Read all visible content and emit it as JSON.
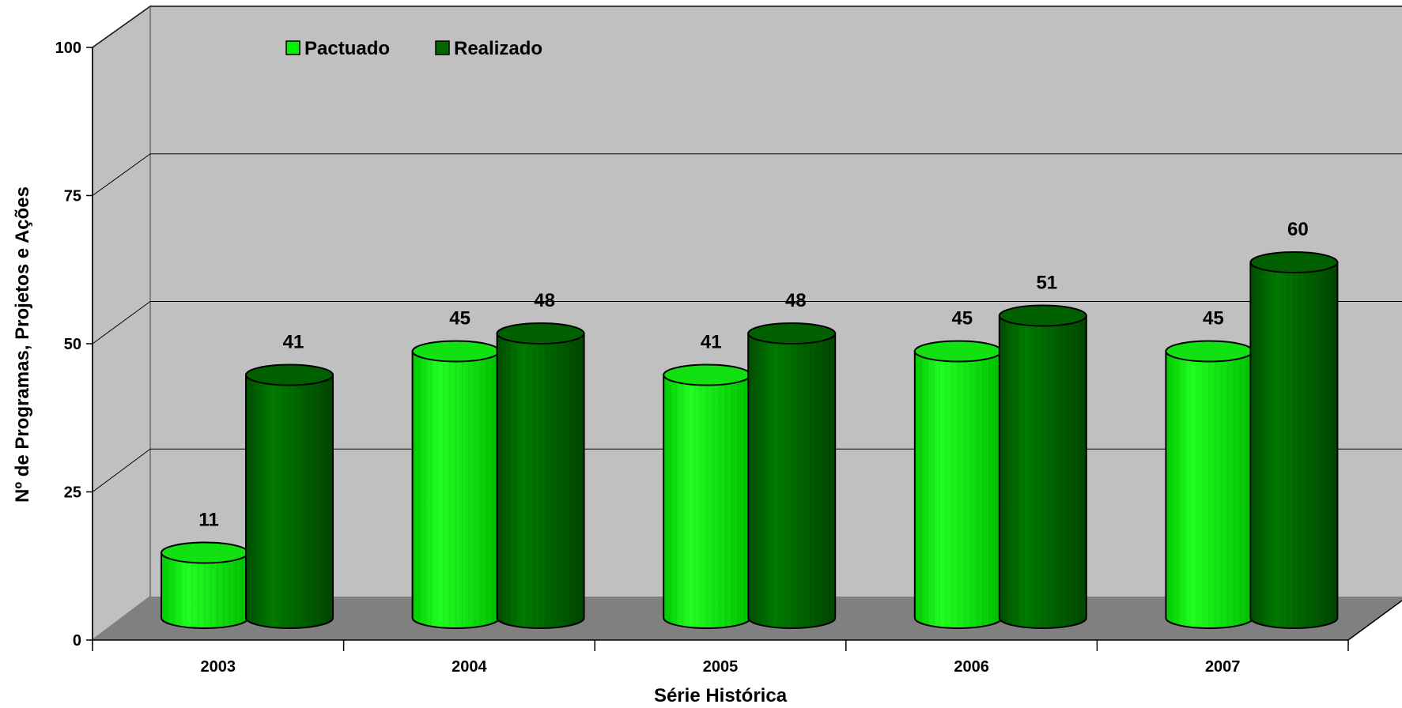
{
  "chart_data": {
    "type": "bar",
    "title": "",
    "xlabel": "Série Histórica",
    "ylabel": "Nº de Programas, Projetos e Ações",
    "categories": [
      "2003",
      "2004",
      "2005",
      "2006",
      "2007"
    ],
    "series": [
      {
        "name": "Pactuado",
        "values": [
          11,
          45,
          41,
          45,
          45
        ]
      },
      {
        "name": "Realizado",
        "values": [
          41,
          48,
          48,
          51,
          60
        ]
      }
    ],
    "ylim": [
      0,
      100
    ],
    "yticks": [
      "0",
      "25",
      "50",
      "75",
      "100"
    ],
    "grid": true,
    "legend": "top-left",
    "style": "3d-cylinder",
    "colors": {
      "Pactuado": "#00f200",
      "Realizado": "#006600",
      "wall": "#c0c0c0",
      "floor": "#808080"
    }
  }
}
